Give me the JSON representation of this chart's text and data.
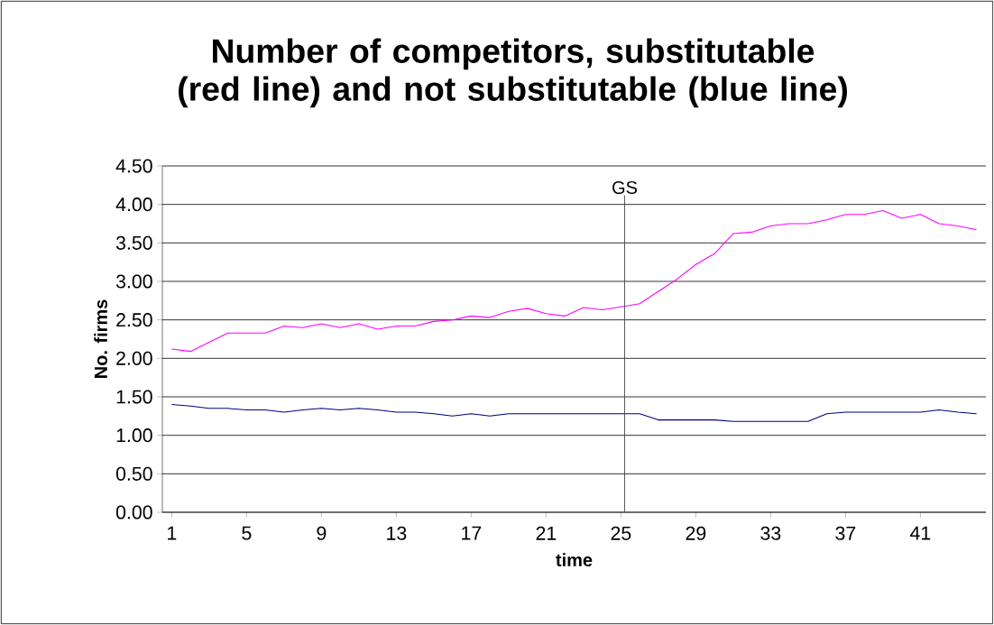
{
  "chart_data": {
    "type": "line",
    "title": "Number of competitors, substitutable (red line) and not substitutable (blue line)",
    "xlabel": "time",
    "ylabel": "No. firms",
    "x": [
      1,
      2,
      3,
      4,
      5,
      6,
      7,
      8,
      9,
      10,
      11,
      12,
      13,
      14,
      15,
      16,
      17,
      18,
      19,
      20,
      21,
      22,
      23,
      24,
      25,
      26,
      27,
      28,
      29,
      30,
      31,
      32,
      33,
      34,
      35,
      36,
      37,
      38,
      39,
      40,
      41,
      42,
      43,
      44
    ],
    "series": [
      {
        "color": "#ff00ff",
        "values": [
          2.12,
          2.09,
          2.21,
          2.33,
          2.33,
          2.33,
          2.42,
          2.4,
          2.45,
          2.4,
          2.45,
          2.38,
          2.42,
          2.42,
          2.48,
          2.5,
          2.55,
          2.53,
          2.61,
          2.65,
          2.58,
          2.55,
          2.66,
          2.63,
          2.67,
          2.71,
          2.87,
          3.03,
          3.22,
          3.36,
          3.62,
          3.64,
          3.72,
          3.75,
          3.75,
          3.8,
          3.87,
          3.87,
          3.92,
          3.82,
          3.87,
          3.75,
          3.72,
          3.67
        ]
      },
      {
        "color": "#000080",
        "values": [
          1.4,
          1.38,
          1.35,
          1.35,
          1.33,
          1.33,
          1.3,
          1.33,
          1.35,
          1.33,
          1.35,
          1.33,
          1.3,
          1.3,
          1.28,
          1.25,
          1.28,
          1.25,
          1.28,
          1.28,
          1.28,
          1.28,
          1.28,
          1.28,
          1.28,
          1.28,
          1.2,
          1.2,
          1.2,
          1.2,
          1.18,
          1.18,
          1.18,
          1.18,
          1.18,
          1.28,
          1.3,
          1.3,
          1.3,
          1.3,
          1.3,
          1.33,
          1.3,
          1.28
        ]
      }
    ],
    "xlim": [
      0.5,
      44.5
    ],
    "xticks": [
      1,
      5,
      9,
      13,
      17,
      21,
      25,
      29,
      33,
      37,
      41
    ],
    "ylim": [
      0,
      4.5
    ],
    "yticks": [
      {
        "value": 0,
        "label": "0.00"
      },
      {
        "value": 0.5,
        "label": "0.50"
      },
      {
        "value": 1,
        "label": "1.00"
      },
      {
        "value": 1.5,
        "label": "1.50"
      },
      {
        "value": 2,
        "label": "2.00"
      },
      {
        "value": 2.5,
        "label": "2.50"
      },
      {
        "value": 3,
        "label": "3.00"
      },
      {
        "value": 3.5,
        "label": "3.50"
      },
      {
        "value": 4,
        "label": "4.00"
      },
      {
        "value": 4.5,
        "label": "4.50"
      }
    ],
    "ref_lines": [
      {
        "axis": "x",
        "value": 25.2,
        "label": "GS"
      }
    ],
    "grid": "y",
    "marker": "none",
    "line_style": "solid"
  }
}
